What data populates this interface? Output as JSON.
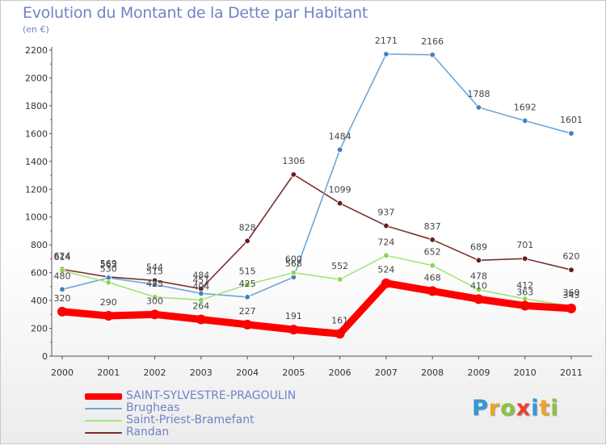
{
  "chart_data": {
    "type": "line",
    "title": "Evolution du Montant de la Dette par Habitant",
    "subtitle": "(en €)",
    "xlabel": "",
    "ylabel": "",
    "x": [
      "2000",
      "2001",
      "2002",
      "2003",
      "2004",
      "2005",
      "2006",
      "2007",
      "2008",
      "2009",
      "2010",
      "2011"
    ],
    "ylim": [
      0,
      2200
    ],
    "yticks": [
      0,
      200,
      400,
      600,
      800,
      1000,
      1200,
      1400,
      1600,
      1800,
      2000,
      2200
    ],
    "grid": false,
    "legend_position": "bottom-left",
    "series": [
      {
        "name": "SAINT-SYLVESTRE-PRAGOULIN",
        "color": "#ff0000",
        "marker": "#ff0000",
        "values": [
          320,
          290,
          300,
          264,
          227,
          191,
          161,
          524,
          468,
          410,
          363,
          343
        ],
        "labeled": true
      },
      {
        "name": "Brugheas",
        "color": "#6ea6d6",
        "marker": "#3d82c4",
        "values": [
          480,
          563,
          515,
          451,
          425,
          568,
          1484,
          2171,
          2166,
          1788,
          1692,
          1601
        ],
        "labeled": true
      },
      {
        "name": "Saint-Priest-Bramefant",
        "color": "#a4e37c",
        "marker": "#8fd44d",
        "values": [
          614,
          530,
          425,
          404,
          515,
          600,
          552,
          724,
          652,
          478,
          412,
          360
        ],
        "labeled": true
      },
      {
        "name": "Randan",
        "color": "#7b2e2e",
        "marker": "#6a1c1c",
        "values": [
          624,
          569,
          544,
          484,
          828,
          1306,
          1099,
          937,
          837,
          689,
          701,
          620
        ],
        "labeled": true
      }
    ]
  },
  "brand": {
    "letters": [
      "P",
      "r",
      "o",
      "x",
      "i",
      "t",
      "i"
    ],
    "colors": [
      "#2f9ad8",
      "#f0a32a",
      "#8ac43f",
      "#e8412c",
      "#2f9ad8",
      "#f0a32a",
      "#8ac43f"
    ]
  }
}
